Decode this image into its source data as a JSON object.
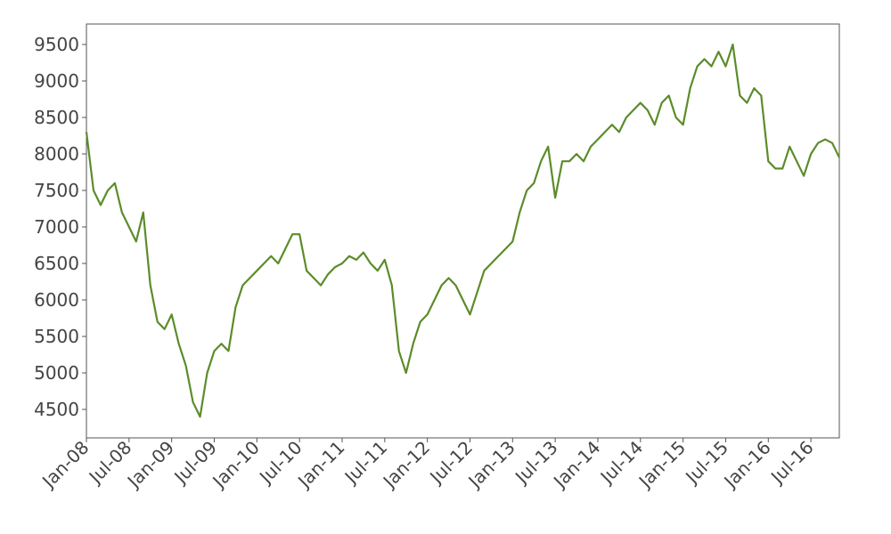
{
  "chart_data": {
    "type": "line",
    "x": [
      "2008-01",
      "2008-02",
      "2008-03",
      "2008-04",
      "2008-05",
      "2008-06",
      "2008-07",
      "2008-08",
      "2008-09",
      "2008-10",
      "2008-11",
      "2008-12",
      "2009-01",
      "2009-02",
      "2009-03",
      "2009-04",
      "2009-05",
      "2009-06",
      "2009-07",
      "2009-08",
      "2009-09",
      "2009-10",
      "2009-11",
      "2009-12",
      "2010-01",
      "2010-02",
      "2010-03",
      "2010-04",
      "2010-05",
      "2010-06",
      "2010-07",
      "2010-08",
      "2010-09",
      "2010-10",
      "2010-11",
      "2010-12",
      "2011-01",
      "2011-02",
      "2011-03",
      "2011-04",
      "2011-05",
      "2011-06",
      "2011-07",
      "2011-08",
      "2011-09",
      "2011-10",
      "2011-11",
      "2011-12",
      "2012-01",
      "2012-02",
      "2012-03",
      "2012-04",
      "2012-05",
      "2012-06",
      "2012-07",
      "2012-08",
      "2012-09",
      "2012-10",
      "2012-11",
      "2012-12",
      "2013-01",
      "2013-02",
      "2013-03",
      "2013-04",
      "2013-05",
      "2013-06",
      "2013-07",
      "2013-08",
      "2013-09",
      "2013-10",
      "2013-11",
      "2013-12",
      "2014-01",
      "2014-02",
      "2014-03",
      "2014-04",
      "2014-05",
      "2014-06",
      "2014-07",
      "2014-08",
      "2014-09",
      "2014-10",
      "2014-11",
      "2014-12",
      "2015-01",
      "2015-02",
      "2015-03",
      "2015-04",
      "2015-05",
      "2015-06",
      "2015-07",
      "2015-08",
      "2015-09",
      "2015-10",
      "2015-11",
      "2015-12",
      "2016-01",
      "2016-02",
      "2016-03",
      "2016-04",
      "2016-05",
      "2016-06",
      "2016-07",
      "2016-08",
      "2016-09",
      "2016-10",
      "2016-11"
    ],
    "series": [
      {
        "color": "#5b8c2a",
        "values": [
          8300,
          7500,
          7300,
          7500,
          7600,
          7200,
          7000,
          6800,
          7200,
          6200,
          5700,
          5600,
          5800,
          5400,
          5100,
          4600,
          4400,
          5000,
          5300,
          5400,
          5300,
          5900,
          6200,
          6300,
          6400,
          6500,
          6600,
          6500,
          6700,
          6900,
          6900,
          6400,
          6300,
          6200,
          6350,
          6450,
          6500,
          6600,
          6550,
          6650,
          6500,
          6400,
          6550,
          6200,
          5300,
          5000,
          5400,
          5700,
          5800,
          6000,
          6200,
          6300,
          6200,
          6000,
          5800,
          6100,
          6400,
          6500,
          6600,
          6700,
          6800,
          7200,
          7500,
          7600,
          7900,
          8100,
          7400,
          7900,
          7900,
          8000,
          7900,
          8100,
          8200,
          8300,
          8400,
          8300,
          8500,
          8600,
          8700,
          8600,
          8400,
          8700,
          8800,
          8500,
          8400,
          8900,
          9200,
          9300,
          9200,
          9400,
          9200,
          9500,
          8800,
          8700,
          8900,
          8800,
          7900,
          7800,
          7800,
          8100,
          7900,
          7700,
          8000,
          8150,
          8200,
          8150,
          7950
        ]
      }
    ],
    "xlim": [
      "2008-01",
      "2016-11"
    ],
    "xticks": [
      {
        "value": "2008-01",
        "label": "Jan-08"
      },
      {
        "value": "2008-07",
        "label": "Jul-08"
      },
      {
        "value": "2009-01",
        "label": "Jan-09"
      },
      {
        "value": "2009-07",
        "label": "Jul-09"
      },
      {
        "value": "2010-01",
        "label": "Jan-10"
      },
      {
        "value": "2010-07",
        "label": "Jul-10"
      },
      {
        "value": "2011-01",
        "label": "Jan-11"
      },
      {
        "value": "2011-07",
        "label": "Jul-11"
      },
      {
        "value": "2012-01",
        "label": "Jan-12"
      },
      {
        "value": "2012-07",
        "label": "Jul-12"
      },
      {
        "value": "2013-01",
        "label": "Jan-13"
      },
      {
        "value": "2013-07",
        "label": "Jul-13"
      },
      {
        "value": "2014-01",
        "label": "Jan-14"
      },
      {
        "value": "2014-07",
        "label": "Jul-14"
      },
      {
        "value": "2015-01",
        "label": "Jan-15"
      },
      {
        "value": "2015-07",
        "label": "Jul-15"
      },
      {
        "value": "2016-01",
        "label": "Jan-16"
      },
      {
        "value": "2016-07",
        "label": "Jul-16"
      }
    ],
    "ylim": [
      4110,
      9780
    ],
    "yticks": [
      4500,
      5000,
      5500,
      6000,
      6500,
      7000,
      7500,
      8000,
      8500,
      9000,
      9500
    ]
  }
}
